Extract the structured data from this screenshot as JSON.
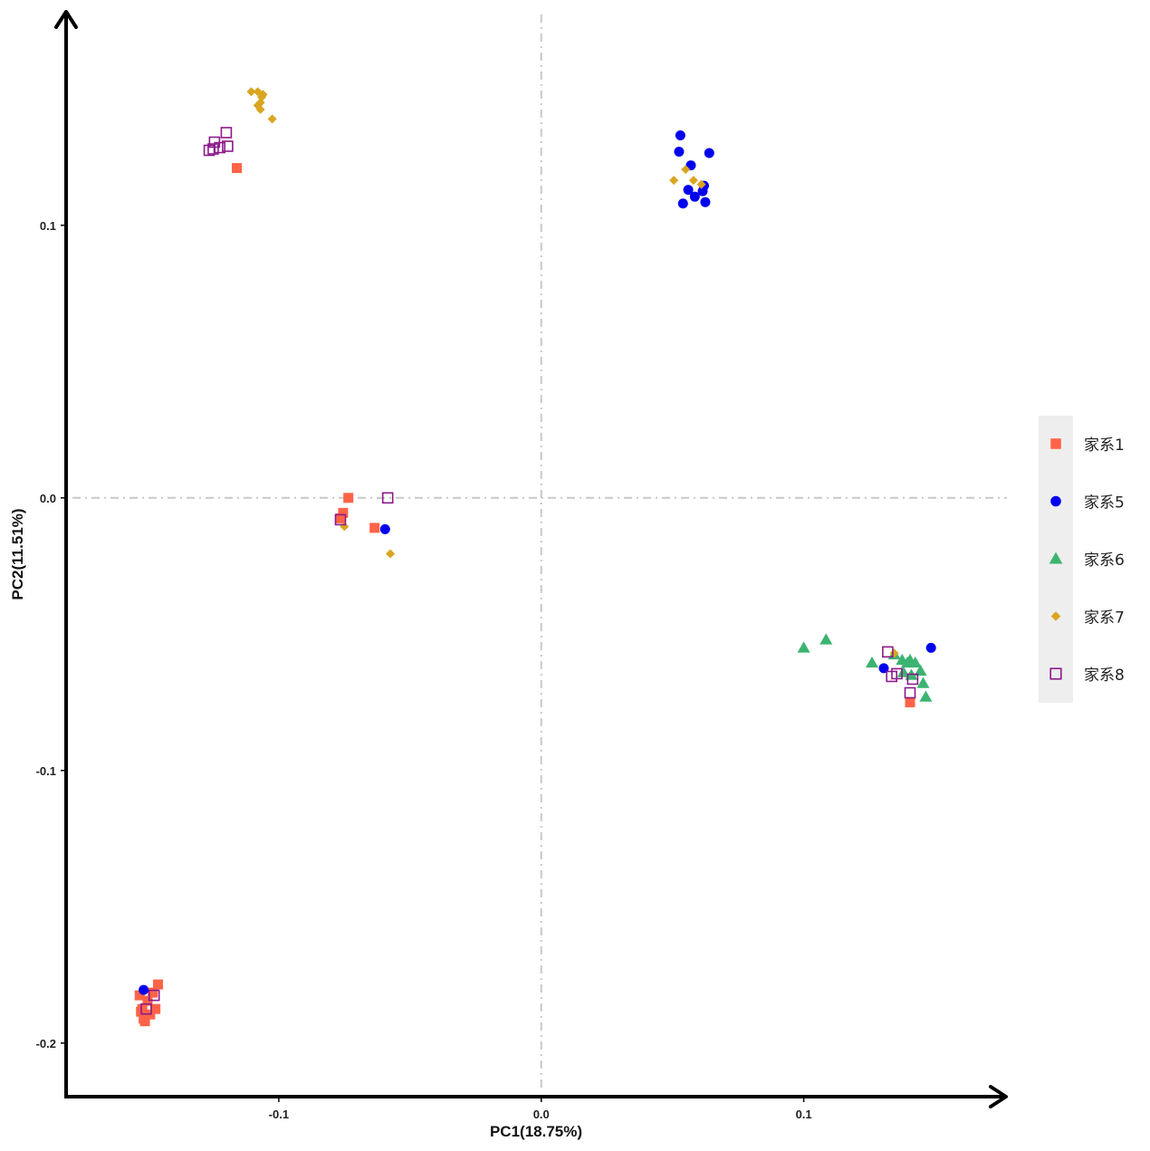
{
  "chart_data": {
    "type": "scatter",
    "xlabel": "PC1(18.75%)",
    "ylabel": "PC2(11.51%)",
    "xlim": [
      -0.18,
      0.175
    ],
    "ylim": [
      -0.219,
      0.178
    ],
    "x_ticks": [
      {
        "value": -0.1,
        "label": "-0.1"
      },
      {
        "value": 0.0,
        "label": "0.0"
      },
      {
        "value": 0.1,
        "label": "0.1"
      }
    ],
    "y_ticks": [
      {
        "value": 0.1,
        "label": "0.1"
      },
      {
        "value": 0.0,
        "label": "0.0"
      },
      {
        "value": -0.1,
        "label": "-0.1"
      },
      {
        "value": -0.2,
        "label": "-0.2"
      }
    ],
    "reference_lines": {
      "x": 0.0,
      "y": 0.0,
      "style": "dashdot"
    },
    "grid": false,
    "legend_position": "right",
    "series": [
      {
        "name": "家系1",
        "marker": "square-filled",
        "color": "#FF6347",
        "points": [
          [
            -0.116,
            0.121
          ],
          [
            -0.0735,
            0.0
          ],
          [
            -0.0755,
            -0.0055
          ],
          [
            -0.0765,
            -0.0075
          ],
          [
            -0.0635,
            -0.011
          ],
          [
            -0.153,
            -0.1825
          ],
          [
            -0.146,
            -0.1785
          ],
          [
            -0.148,
            -0.1815
          ],
          [
            -0.147,
            -0.1875
          ],
          [
            -0.149,
            -0.1895
          ],
          [
            -0.1515,
            -0.191
          ],
          [
            -0.1525,
            -0.1885
          ],
          [
            -0.151,
            -0.192
          ],
          [
            -0.152,
            -0.1875
          ],
          [
            -0.15,
            -0.1845
          ],
          [
            0.1405,
            -0.075
          ]
        ]
      },
      {
        "name": "家系5",
        "marker": "circle-filled",
        "color": "#0000EE",
        "points": [
          [
            0.053,
            0.133
          ],
          [
            0.0525,
            0.127
          ],
          [
            0.064,
            0.1265
          ],
          [
            0.057,
            0.122
          ],
          [
            0.056,
            0.113
          ],
          [
            0.0585,
            0.1105
          ],
          [
            0.0615,
            0.1125
          ],
          [
            0.062,
            0.1145
          ],
          [
            0.054,
            0.108
          ],
          [
            0.0625,
            0.1085
          ],
          [
            -0.0595,
            -0.0115
          ],
          [
            -0.1515,
            -0.1805
          ],
          [
            0.1485,
            -0.055
          ],
          [
            0.1305,
            -0.0625
          ]
        ]
      },
      {
        "name": "家系6",
        "marker": "triangle-filled",
        "color": "#3CB371",
        "points": [
          [
            0.1,
            -0.055
          ],
          [
            0.1085,
            -0.052
          ],
          [
            0.126,
            -0.0605
          ],
          [
            0.1345,
            -0.0575
          ],
          [
            0.138,
            -0.064
          ],
          [
            0.1395,
            -0.0605
          ],
          [
            0.1405,
            -0.0595
          ],
          [
            0.1425,
            -0.0605
          ],
          [
            0.1445,
            -0.0635
          ],
          [
            0.1455,
            -0.068
          ],
          [
            0.1465,
            -0.073
          ],
          [
            0.141,
            -0.065
          ],
          [
            0.1375,
            -0.0595
          ]
        ]
      },
      {
        "name": "家系7",
        "marker": "diamond-filled",
        "color": "#DAA520",
        "points": [
          [
            -0.1105,
            0.149
          ],
          [
            -0.108,
            0.149
          ],
          [
            -0.1065,
            0.147
          ],
          [
            -0.107,
            0.145
          ],
          [
            -0.108,
            0.144
          ],
          [
            -0.107,
            0.1425
          ],
          [
            -0.1025,
            0.139
          ],
          [
            -0.106,
            0.148
          ],
          [
            0.0505,
            0.1165
          ],
          [
            0.055,
            0.1205
          ],
          [
            0.058,
            0.1165
          ],
          [
            0.061,
            0.115
          ],
          [
            -0.075,
            -0.0105
          ],
          [
            -0.0575,
            -0.0205
          ],
          [
            0.1345,
            -0.057
          ]
        ]
      },
      {
        "name": "家系8",
        "marker": "square-open",
        "color": "#8B1A8B",
        "points": [
          [
            -0.12,
            0.134
          ],
          [
            -0.1245,
            0.1305
          ],
          [
            -0.1265,
            0.1275
          ],
          [
            -0.1225,
            0.1285
          ],
          [
            -0.1195,
            0.129
          ],
          [
            -0.125,
            0.128
          ],
          [
            -0.0585,
            0.0
          ],
          [
            -0.0765,
            -0.008
          ],
          [
            -0.1475,
            -0.1825
          ],
          [
            -0.1505,
            -0.1875
          ],
          [
            0.132,
            -0.0565
          ],
          [
            0.1335,
            -0.0655
          ],
          [
            0.1355,
            -0.0645
          ],
          [
            0.1405,
            -0.0715
          ],
          [
            0.1415,
            -0.0665
          ]
        ]
      }
    ]
  }
}
